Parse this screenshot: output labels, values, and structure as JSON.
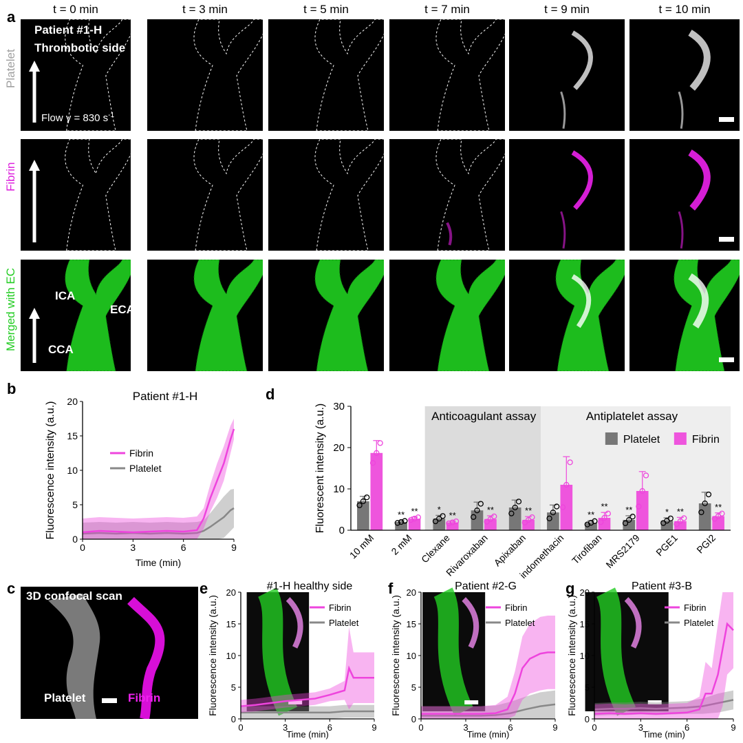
{
  "panel_a": {
    "label": "a",
    "times": [
      "t = 0 min",
      "t = 3 min",
      "t = 5 min",
      "t = 7 min",
      "t = 9 min",
      "t = 10 min"
    ],
    "row_labels": [
      "Platelet",
      "Fibrin",
      "Merged with EC"
    ],
    "patient_title_1": "Patient #1-H",
    "patient_title_2": "Thrombotic side",
    "flow_text": "Flow γ = 830 s",
    "flow_sup": "-1",
    "vessel_labels": {
      "ica": "ICA",
      "eca": "ECA",
      "cca": "CCA"
    },
    "colors": {
      "platelet": "#ffffff",
      "fibrin": "#e020e0",
      "ec": "#22dd22"
    }
  },
  "panel_b": {
    "label": "b"
  },
  "panel_c": {
    "label": "c",
    "title": "3D confocal scan",
    "platelet": "Platelet",
    "fibrin": "Fibrin"
  },
  "panel_d": {
    "label": "d"
  },
  "panel_e": {
    "label": "e"
  },
  "panel_f": {
    "label": "f"
  },
  "panel_g": {
    "label": "g"
  },
  "chart_data": [
    {
      "id": "b",
      "type": "line",
      "title": "Patient #1-H",
      "xlabel": "Time (min)",
      "ylabel": "Fluorescence intensity (a.u.)",
      "xlim": [
        0,
        9
      ],
      "ylim": [
        0,
        20
      ],
      "xticks": [
        0,
        3,
        6,
        9
      ],
      "yticks": [
        0,
        5,
        10,
        15,
        20
      ],
      "legend": "center-right",
      "series": [
        {
          "name": "Fibrin",
          "color": "#ee44dd",
          "x": [
            0,
            1,
            2,
            3,
            4,
            5,
            6,
            6.8,
            7.2,
            7.6,
            8.0,
            8.4,
            8.8,
            9
          ],
          "y": [
            1.0,
            1.2,
            1.1,
            1.0,
            1.1,
            1.2,
            1.1,
            1.3,
            3.0,
            6.0,
            8.5,
            11,
            14.5,
            16
          ],
          "err": [
            2,
            2,
            2,
            2,
            2,
            2,
            2,
            2,
            1.5,
            2,
            2.5,
            2.5,
            2,
            1.5
          ]
        },
        {
          "name": "Platelet",
          "color": "#888888",
          "x": [
            0,
            1,
            2,
            3,
            4,
            5,
            6,
            6.8,
            7.2,
            7.6,
            8.0,
            8.4,
            8.8,
            9
          ],
          "y": [
            0.8,
            0.9,
            0.8,
            0.9,
            0.8,
            0.9,
            0.8,
            0.9,
            1.2,
            1.8,
            2.5,
            3.2,
            4.2,
            4.5
          ],
          "err": [
            1.6,
            1.6,
            1.6,
            1.6,
            1.6,
            1.6,
            1.6,
            1.6,
            1.5,
            2,
            2.5,
            3,
            3,
            2.8
          ]
        }
      ]
    },
    {
      "id": "d",
      "type": "bar",
      "ylabel": "Fluorescent intensity (a.u.)",
      "ylim": [
        0,
        30
      ],
      "yticks": [
        0,
        10,
        20,
        30
      ],
      "categories": [
        "10 mM",
        "2 mM",
        "Clexane",
        "Rivaroxaban",
        "Apixaban",
        "indomethacin",
        "Tirofiban",
        "MRS2179",
        "PGE1",
        "PGI2"
      ],
      "group_labels": [
        "Anticoagulant assay",
        "Antiplatelet assay"
      ],
      "legend": "top-right",
      "series": [
        {
          "name": "Platelet",
          "color": "#777777",
          "values": [
            7,
            2,
            2.8,
            4.8,
            5.5,
            4.3,
            1.8,
            2.5,
            2.3,
            6.5
          ],
          "err": [
            1.2,
            0.3,
            0.8,
            2.0,
            1.8,
            1.8,
            0.5,
            1.0,
            0.7,
            2.7
          ],
          "sig": [
            "",
            "**",
            "*",
            "",
            "",
            "",
            "**",
            "**",
            "*",
            ""
          ]
        },
        {
          "name": "Fibrin",
          "color": "#ee55dd",
          "values": [
            18.7,
            2.8,
            1.9,
            2.7,
            2.5,
            11,
            3,
            9.5,
            2.2,
            3.4
          ],
          "err": [
            3.0,
            0.4,
            0.3,
            0.8,
            0.8,
            6.8,
            1.3,
            4.7,
            0.9,
            0.8
          ],
          "sig": [
            "",
            "**",
            "**",
            "**",
            "**",
            "",
            "**",
            "",
            "**",
            "**"
          ]
        }
      ]
    },
    {
      "id": "e",
      "type": "line",
      "title": "#1-H healthy side",
      "xlabel": "Time (min)",
      "ylabel": "Fluorescence intensity (a.u.)",
      "xlim": [
        0,
        9
      ],
      "ylim": [
        0,
        20
      ],
      "xticks": [
        0,
        3,
        6,
        9
      ],
      "yticks": [
        0,
        5,
        10,
        15,
        20
      ],
      "legend": "top-right",
      "series": [
        {
          "name": "Fibrin",
          "color": "#ee44dd",
          "x": [
            0,
            1,
            2,
            3,
            4,
            5,
            6,
            7.0,
            7.3,
            7.6,
            8.0,
            8.5,
            9
          ],
          "y": [
            2,
            2.2,
            2.5,
            2.8,
            3,
            3.2,
            3.8,
            4.5,
            8,
            6.5,
            6.5,
            6.5,
            6.5
          ],
          "err": [
            1,
            1,
            1,
            1,
            1,
            1,
            1,
            1.5,
            6.5,
            4,
            4,
            4,
            4
          ]
        },
        {
          "name": "Platelet",
          "color": "#888888",
          "x": [
            0,
            1,
            2,
            3,
            4,
            5,
            6,
            7,
            8,
            9
          ],
          "y": [
            1,
            1,
            1,
            1,
            1,
            1,
            1,
            1.2,
            1.2,
            1.2
          ],
          "err": [
            1,
            1,
            1,
            1,
            1,
            1,
            1,
            1,
            1,
            1
          ]
        }
      ]
    },
    {
      "id": "f",
      "type": "line",
      "title": "Patient #2-G",
      "xlabel": "Time (min)",
      "ylabel": "Fluorescence intensity (a.u.)",
      "xlim": [
        0,
        9
      ],
      "ylim": [
        0,
        20
      ],
      "xticks": [
        0,
        3,
        6,
        9
      ],
      "yticks": [
        0,
        5,
        10,
        15,
        20
      ],
      "legend": "top-right",
      "series": [
        {
          "name": "Fibrin",
          "color": "#ee44dd",
          "x": [
            0,
            1,
            2,
            3,
            4,
            5,
            5.8,
            6.3,
            6.8,
            7.3,
            8,
            8.5,
            9
          ],
          "y": [
            0.8,
            0.8,
            0.8,
            0.8,
            0.8,
            0.9,
            1.5,
            4,
            8,
            9.5,
            10.3,
            10.5,
            10.5
          ],
          "err": [
            1.2,
            1.2,
            1.2,
            1.2,
            1.2,
            1.3,
            2,
            3.5,
            5,
            5.5,
            5.8,
            5.8,
            5.8
          ]
        },
        {
          "name": "Platelet",
          "color": "#888888",
          "x": [
            0,
            1,
            2,
            3,
            4,
            5,
            6,
            7,
            8,
            9
          ],
          "y": [
            0.5,
            0.5,
            0.5,
            0.5,
            0.5,
            0.6,
            0.9,
            1.5,
            2,
            2.3
          ],
          "err": [
            1.5,
            1.5,
            1.5,
            1.5,
            1.5,
            1.5,
            1.8,
            2,
            2.2,
            2.2
          ]
        }
      ]
    },
    {
      "id": "g",
      "type": "line",
      "title": "Patient #3-B",
      "xlabel": "Time (min)",
      "ylabel": "Fluorescence intensity (a.u.)",
      "xlim": [
        0,
        9
      ],
      "ylim": [
        0,
        20
      ],
      "xticks": [
        0,
        3,
        6,
        9
      ],
      "yticks": [
        0,
        5,
        10,
        15,
        20
      ],
      "legend": "top-right",
      "series": [
        {
          "name": "Fibrin",
          "color": "#ee44dd",
          "x": [
            0,
            1,
            2,
            3,
            4,
            5,
            6,
            6.8,
            7.2,
            7.6,
            8,
            8.3,
            8.6,
            9
          ],
          "y": [
            0.8,
            0.9,
            0.8,
            0.9,
            0.8,
            0.9,
            1,
            1.5,
            4,
            4,
            7,
            11,
            15,
            14
          ],
          "err": [
            1.5,
            1.5,
            1.5,
            1.5,
            1.5,
            1.5,
            1.5,
            2,
            5,
            4,
            8,
            9,
            8,
            6
          ]
        },
        {
          "name": "Platelet",
          "color": "#888888",
          "x": [
            0,
            1,
            2,
            3,
            4,
            5,
            6,
            7,
            8,
            9
          ],
          "y": [
            1.5,
            1.6,
            1.6,
            1.7,
            1.6,
            1.7,
            1.8,
            2,
            2.5,
            3
          ],
          "err": [
            1,
            1,
            1,
            1,
            1,
            1,
            1,
            1.2,
            1.5,
            1.5
          ]
        }
      ]
    }
  ]
}
